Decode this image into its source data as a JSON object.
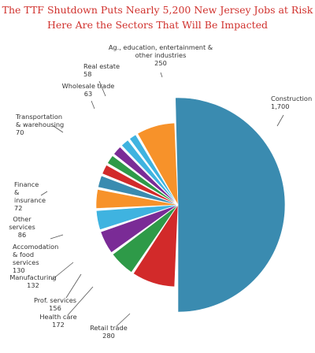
{
  "title_line1": "The TTF Shutdown Puts Nearly 5,200 New Jersey Jobs at Risk",
  "title_line2": "Here Are the Sectors That Will Be Impacted",
  "chart_data": {
    "type": "pie",
    "title": "The TTF Shutdown Puts Nearly 5,200 New Jersey Jobs at Risk",
    "subtitle": "Here Are the Sectors That Will Be Impacted",
    "slices": [
      {
        "label": [
          "Construction"
        ],
        "value": 1700,
        "value_label": "1,700",
        "color": "#3a8bb0"
      },
      {
        "label": [
          "Retail trade"
        ],
        "value": 280,
        "value_label": "280",
        "color": "#d22a2a"
      },
      {
        "label": [
          "Health care"
        ],
        "value": 172,
        "value_label": "172",
        "color": "#2e9a48"
      },
      {
        "label": [
          "Prof. services"
        ],
        "value": 156,
        "value_label": "156",
        "color": "#7a2b96"
      },
      {
        "label": [
          "Manufacturing"
        ],
        "value": 132,
        "value_label": "132",
        "color": "#3fb3e0"
      },
      {
        "label": [
          "Accomodation",
          "& food",
          "services"
        ],
        "value": 130,
        "value_label": "130",
        "color": "#f7922a"
      },
      {
        "label": [
          "Other",
          "services"
        ],
        "value": 86,
        "value_label": "86",
        "color": "#3a8bb0"
      },
      {
        "label": [
          "Finance",
          "&",
          "insurance"
        ],
        "value": 72,
        "value_label": "72",
        "color": "#d22a2a"
      },
      {
        "label": [],
        "value": 68,
        "value_label": "",
        "color": "#2e9a48"
      },
      {
        "label": [
          "Transportation",
          "& warehousing"
        ],
        "value": 70,
        "value_label": "70",
        "color": "#7a2b96"
      },
      {
        "label": [
          "Wholesale trade"
        ],
        "value": 63,
        "value_label": "63",
        "color": "#3fb3e0"
      },
      {
        "label": [
          "Real estate"
        ],
        "value": 58,
        "value_label": "58",
        "color": "#3fb3e0"
      },
      {
        "label": [
          "Ag., education, entertainment &",
          "other industries"
        ],
        "value": 250,
        "value_label": "250",
        "color": "#f7922a"
      }
    ],
    "legend": "none"
  }
}
